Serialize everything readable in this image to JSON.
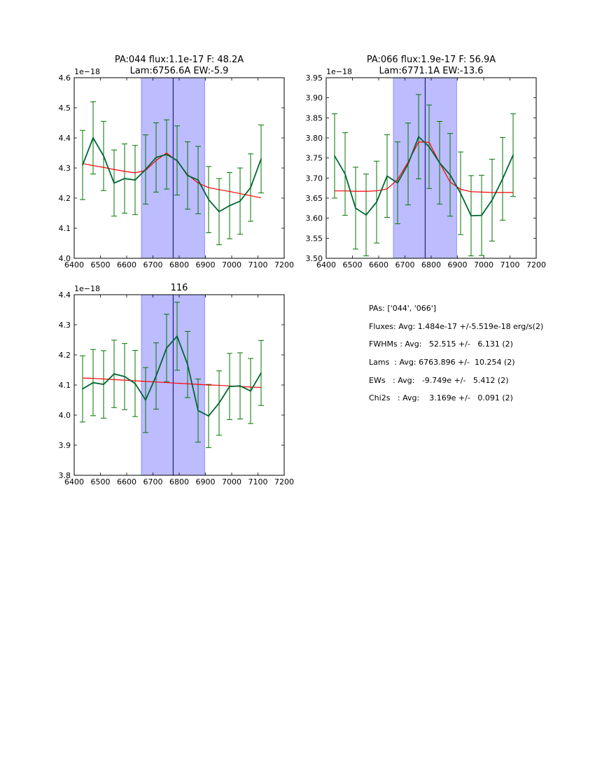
{
  "colors": {
    "data_line": "#006633",
    "error_bars": "#007700",
    "fit_line": "#ff0000",
    "band_fill": "#bcbcff",
    "center_line": "#000080"
  },
  "chart_data": [
    {
      "type": "line",
      "title": "PA:044 flux:1.1e-17 F: 48.2A\nLam:6756.6A EW:-5.9",
      "xlabel": "",
      "ylabel": "",
      "xlim": [
        6400,
        7200
      ],
      "ylim": [
        4.0,
        4.6
      ],
      "x_ticks": [
        6400,
        6500,
        6600,
        6700,
        6800,
        6900,
        7000,
        7100,
        7200
      ],
      "y_ticks": [
        4.0,
        4.1,
        4.2,
        4.3,
        4.4,
        4.5,
        4.6
      ],
      "y_tick_labels": [
        "4.0",
        "4.1",
        "4.2",
        "4.3",
        "4.4",
        "4.5",
        "4.6"
      ],
      "y_scale_label": "1e−18",
      "shaded_band": [
        6656,
        6897
      ],
      "center_line": 6777,
      "series": [
        {
          "role": "data",
          "x": [
            6432,
            6472,
            6512,
            6552,
            6592,
            6632,
            6672,
            6712,
            6752,
            6792,
            6832,
            6872,
            6912,
            6952,
            6992,
            7032,
            7072,
            7112
          ],
          "y": [
            4.31,
            4.4,
            4.34,
            4.25,
            4.265,
            4.26,
            4.295,
            4.335,
            4.345,
            4.325,
            4.275,
            4.26,
            4.195,
            4.155,
            4.175,
            4.19,
            4.235,
            4.33
          ],
          "err": [
            0.115,
            0.12,
            0.115,
            0.11,
            0.115,
            0.115,
            0.115,
            0.115,
            0.115,
            0.115,
            0.112,
            0.112,
            0.11,
            0.11,
            0.11,
            0.11,
            0.112,
            0.113
          ]
        },
        {
          "role": "fit",
          "x": [
            6432,
            6472,
            6512,
            6552,
            6592,
            6632,
            6672,
            6712,
            6752,
            6792,
            6832,
            6872,
            6912,
            6952,
            6992,
            7032,
            7072,
            7112
          ],
          "y": [
            4.315,
            4.308,
            4.302,
            4.295,
            4.289,
            4.284,
            4.292,
            4.325,
            4.35,
            4.323,
            4.278,
            4.25,
            4.235,
            4.228,
            4.222,
            4.215,
            4.208,
            4.201
          ]
        }
      ]
    },
    {
      "type": "line",
      "title": "PA:066 flux:1.9e-17 F: 56.9A\nLam:6771.1A EW:-13.6",
      "xlabel": "",
      "ylabel": "",
      "xlim": [
        6400,
        7200
      ],
      "ylim": [
        3.5,
        3.95
      ],
      "x_ticks": [
        6400,
        6500,
        6600,
        6700,
        6800,
        6900,
        7000,
        7100,
        7200
      ],
      "y_ticks": [
        3.5,
        3.55,
        3.6,
        3.65,
        3.7,
        3.75,
        3.8,
        3.85,
        3.9,
        3.95
      ],
      "y_tick_labels": [
        "3.50",
        "3.55",
        "3.60",
        "3.65",
        "3.70",
        "3.75",
        "3.80",
        "3.85",
        "3.90",
        "3.95"
      ],
      "y_scale_label": "1e−18",
      "shaded_band": [
        6656,
        6897
      ],
      "center_line": 6777,
      "series": [
        {
          "role": "data",
          "x": [
            6432,
            6472,
            6512,
            6552,
            6592,
            6632,
            6672,
            6712,
            6752,
            6792,
            6832,
            6872,
            6912,
            6952,
            6992,
            7032,
            7072,
            7112
          ],
          "y": [
            3.755,
            3.71,
            3.625,
            3.608,
            3.64,
            3.705,
            3.688,
            3.735,
            3.803,
            3.778,
            3.738,
            3.708,
            3.662,
            3.606,
            3.607,
            3.645,
            3.698,
            3.757
          ],
          "err": [
            0.105,
            0.103,
            0.102,
            0.102,
            0.102,
            0.103,
            0.102,
            0.102,
            0.105,
            0.104,
            0.103,
            0.103,
            0.103,
            0.1,
            0.1,
            0.102,
            0.103,
            0.103
          ]
        },
        {
          "role": "fit",
          "x": [
            6432,
            6472,
            6512,
            6552,
            6592,
            6632,
            6672,
            6712,
            6752,
            6792,
            6832,
            6872,
            6912,
            6952,
            6992,
            7032,
            7072,
            7112
          ],
          "y": [
            3.668,
            3.668,
            3.667,
            3.667,
            3.668,
            3.673,
            3.696,
            3.74,
            3.79,
            3.789,
            3.738,
            3.69,
            3.672,
            3.666,
            3.665,
            3.664,
            3.664,
            3.664
          ]
        }
      ]
    },
    {
      "type": "line",
      "title": "116",
      "xlabel": "",
      "ylabel": "",
      "xlim": [
        6400,
        7200
      ],
      "ylim": [
        3.8,
        4.4
      ],
      "x_ticks": [
        6400,
        6500,
        6600,
        6700,
        6800,
        6900,
        7000,
        7100,
        7200
      ],
      "y_ticks": [
        3.8,
        3.9,
        4.0,
        4.1,
        4.2,
        4.3,
        4.4
      ],
      "y_tick_labels": [
        "3.8",
        "3.9",
        "4.0",
        "4.1",
        "4.2",
        "4.3",
        "4.4"
      ],
      "y_scale_label": "1e−18",
      "shaded_band": [
        6656,
        6897
      ],
      "center_line": 6777,
      "series": [
        {
          "role": "data",
          "x": [
            6432,
            6472,
            6512,
            6552,
            6592,
            6632,
            6672,
            6712,
            6752,
            6792,
            6832,
            6872,
            6912,
            6952,
            6992,
            7032,
            7072,
            7112
          ],
          "y": [
            4.087,
            4.108,
            4.102,
            4.137,
            4.128,
            4.105,
            4.05,
            4.13,
            4.223,
            4.262,
            4.168,
            4.015,
            3.997,
            4.04,
            4.095,
            4.097,
            4.08,
            4.14
          ],
          "err": [
            0.11,
            0.11,
            0.112,
            0.112,
            0.11,
            0.11,
            0.108,
            0.11,
            0.112,
            0.113,
            0.11,
            0.105,
            0.105,
            0.107,
            0.11,
            0.11,
            0.108,
            0.108
          ]
        },
        {
          "role": "fit",
          "x": [
            6432,
            6472,
            6512,
            6552,
            6592,
            6632,
            6672,
            6712,
            6752,
            6792,
            6832,
            6872,
            6912,
            6952,
            6992,
            7032,
            7072,
            7112
          ],
          "y": [
            4.123,
            4.122,
            4.12,
            4.118,
            4.116,
            4.114,
            4.112,
            4.11,
            4.108,
            4.106,
            4.104,
            4.102,
            4.1,
            4.099,
            4.097,
            4.095,
            4.093,
            4.092
          ]
        }
      ]
    }
  ],
  "stats": {
    "pas": "PAs: ['044', '066']",
    "fluxes": "Fluxes: Avg: 1.484e-17 +/-5.519e-18 erg/s(2)",
    "fwhms": "FWHMs : Avg:   52.515 +/-   6.131 (2)",
    "lams": "Lams  : Avg: 6763.896 +/-  10.254 (2)",
    "ews": "EWs   : Avg:   -9.749e +/-   5.412 (2)",
    "chi2s": "Chi2s   : Avg:    3.169e +/-   0.091 (2)"
  }
}
